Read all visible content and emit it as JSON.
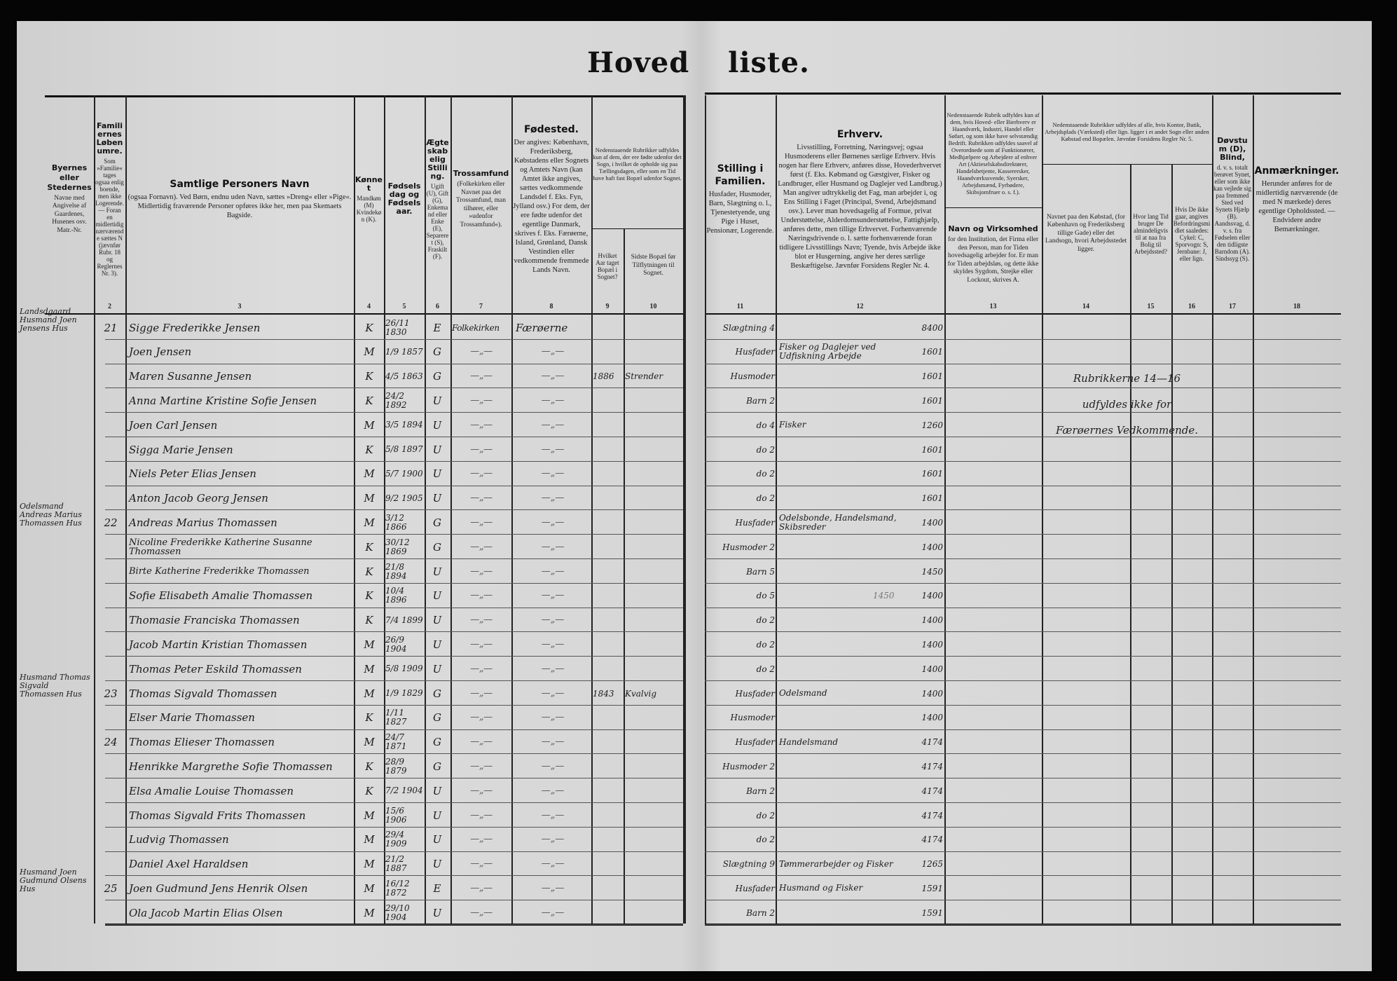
{
  "title": "Hoved liste.",
  "header": {
    "columns": [
      {
        "num": "",
        "title": "Byernes eller Stedernes",
        "text": "Navne med Angivelse af Gaardenes, Husenes osv. Matr.-Nr."
      },
      {
        "num": "2",
        "title": "Familiernes Løbenumre.",
        "text": "Som »Familie« tages ogsaa enlig boende, men ikke Logerende. — Foran en midlertidig nærværende sættes N (jævnfør Rubr. 18 og Reglernes Nr. 3)."
      },
      {
        "num": "3",
        "title": "Samtlige Personers Navn",
        "text": "(ogsaa Fornavn). Ved Børn, endnu uden Navn, sættes »Dreng« eller »Pige«. Midlertidig fraværende Personer opføres ikke her, men paa Skemaets Bagside."
      },
      {
        "num": "4",
        "title": "Kønnet",
        "text": "Mandkøn (M) Kvindekøn (K)."
      },
      {
        "num": "5",
        "title": "Fødselsdag og Fødselsaar.",
        "text": ""
      },
      {
        "num": "6",
        "title": "Ægteskabelig Stilling.",
        "text": "Ugift (U), Gift (G), Enkemand eller Enke (E), Separeret (S), Fraskilt (F)."
      },
      {
        "num": "7",
        "title": "Trossamfund",
        "text": "(Folkekirken eller Navnet paa det Trossamfund, man tilhører, eller »udenfor Trossamfund«)."
      },
      {
        "num": "8",
        "title": "Fødested.",
        "text": "Der angives: København, Frederiksberg, Købstadens eller Sognets og Amtets Navn (kan Amtet ikke angives, sættes vedkommende Landsdel f. Eks. Fyn, Jylland osv.) For dem, der ere fødte udenfor det egentlige Danmark, skrives f. Eks. Færøerne, Island, Grønland, Dansk Vestindien eller vedkommende fremmede Lands Navn."
      },
      {
        "num": "9",
        "title": "",
        "text": "Hvilket Aar taget Bopæl i Sognet?"
      },
      {
        "num": "10",
        "title": "",
        "text": "Sidste Bopæl før Tilflytningen til Sognet."
      },
      {
        "num": "11",
        "title": "Stilling i Familien.",
        "text": "Husfader, Husmoder, Barn, Slægtning o. l., Tjenestetyende, ung Pige i Huset, Pensionær, Logerende."
      },
      {
        "num": "12",
        "title": "Erhverv.",
        "text": "Livsstilling, Forretning, Næringsvej; ogsaa Husmoderens eller Børnenes særlige Erhverv. Hvis nogen har flere Erhverv, anføres disse, Hovederhvervet først (f. Eks. Købmand og Gæstgiver, Fisker og Landbruger, eller Husmand og Daglejer ved Landbrug.) Man angiver udtrykkelig det Fag, man arbejder i, og Ens Stilling i Faget (Principal, Svend, Arbejdsmand osv.). Lever man hovedsagelig af Formue, privat Understøttelse, Alderdomsunderstøttelse, Fattighjælp, anføres dette, men tillige Erhvervet. Forhenværende Næringsdrivende o. l. sætte forhenværende foran tidligere Livsstillings Navn; Tyende, hvis Arbejde ikke blot er Husgerning, angive her deres særlige Beskæftigelse. Jævnfør Forsidens Regler Nr. 4."
      },
      {
        "num": "13",
        "title": "Navn og Virksomhed",
        "text": "for den Institution, det Firma eller den Person, man for Tiden hovedsagelig arbejder for. Er man for Tiden arbejdsløs, og dette ikke skyldes Sygdom, Strejke eller Lockout, skrives A."
      },
      {
        "num": "14",
        "title": "",
        "text": "Navnet paa den Købstad, (for København og Frederiksberg tillige Gade) eller det Landsogn, hvori Arbejdsstedet ligger."
      },
      {
        "num": "15",
        "title": "",
        "text": "Hvor lang Tid bruger De almindeligvis til at naa fra Bolig til Arbejdssted?"
      },
      {
        "num": "16",
        "title": "",
        "text": "Hvis De ikke gaar, angives Befordringsmidlet saaledes: Cykel: C, Sporvogn: S, Jernbane: J, eller lign."
      },
      {
        "num": "17",
        "title": "Døvstum (D), Blind,",
        "text": "d. v. s. totalt berøvet Synet, eller som ikke kan vejlede sig paa fremmed Sted ved Synets Hjælp (B). Aandssvag, d. v. s. fra Fødselen eller den tidligste Barndom (A). Sindssyg (S)."
      },
      {
        "num": "18",
        "title": "Anmærkninger.",
        "text": "Herunder anføres for de midlertidig nærværende (de med N mærkede) deres egentlige Opholdssted. — Endvidere andre Bemærkninger."
      }
    ],
    "group_9_10": "Nedenstaaende Rubrikker udfyldes kun af dem, der ere fødte udenfor det Sogn, i hvilket de opholde sig paa Tællingsdagen, eller som en Tid have haft fast Bopæl udenfor Sognet.",
    "group_13": "Nedenstaaende Rubrik udfyldes kun af dem, hvis Hoved- eller Bierhverv er Haandværk, Industri, Handel eller Søfart, og som ikke have selvstændig Bedrift. Rubrikken udfyldes saavel af Overordnede som af Funktionærer, Medhjælpere og Arbejdere af enhver Art (Aktieselskabsdirektører, Handelsbetjente, Kasserersker, Haandværkssvende, Syersker, Arbejdsmænd, Fyrbødere, Skibsjomfruer o. s. f.).",
    "group_14_16": "Nedenstaaende Rubrikker udfyldes af alle, hvis Kontor, Butik, Arbejdsplads (Værksted) eller lign. ligger i et andet Sogn eller anden Købstad end Bopælen. Jævnfør Forsidens Regler Nr. 5."
  },
  "note_14_16": [
    "Rubrikkerne 14—16",
    "udfyldes ikke for",
    "Færøernes Vedkommende."
  ],
  "rows": [
    {
      "place": "Landsdgaard Husmand Joen Jensens Hus",
      "fam": "21",
      "name": "Sigge Frederikke Jensen",
      "sex": "K",
      "born": "26/11 1830",
      "civil": "E",
      "faith": "Folkekirken",
      "birthplace": "Færøerne",
      "year": "",
      "last": "",
      "stilling": "Slægtning 4",
      "erhverv": "",
      "code": "8400"
    },
    {
      "place": "",
      "fam": "",
      "name": "Joen Jensen",
      "sex": "M",
      "born": "1/9 1857",
      "civil": "G",
      "faith": "—„—",
      "birthplace": "—„—",
      "year": "",
      "last": "",
      "stilling": "Husfader",
      "erhverv": "Fisker og Daglejer ved Udfiskning Arbejde",
      "code": "1601"
    },
    {
      "place": "",
      "fam": "",
      "name": "Maren Susanne Jensen",
      "sex": "K",
      "born": "4/5 1863",
      "civil": "G",
      "faith": "—„—",
      "birthplace": "—„—",
      "year": "1886",
      "last": "Strender",
      "stilling": "Husmoder",
      "erhverv": "",
      "code": "1601"
    },
    {
      "place": "",
      "fam": "",
      "name": "Anna Martine Kristine Sofie Jensen",
      "sex": "K",
      "born": "24/2 1892",
      "civil": "U",
      "faith": "—„—",
      "birthplace": "—„—",
      "year": "",
      "last": "",
      "stilling": "Barn 2",
      "erhverv": "",
      "code": "1601"
    },
    {
      "place": "",
      "fam": "",
      "name": "Joen Carl Jensen",
      "sex": "M",
      "born": "3/5 1894",
      "civil": "U",
      "faith": "—„—",
      "birthplace": "—„—",
      "year": "",
      "last": "",
      "stilling": "do 4",
      "erhverv": "Fisker",
      "code": "1260"
    },
    {
      "place": "",
      "fam": "",
      "name": "Sigga Marie Jensen",
      "sex": "K",
      "born": "5/8 1897",
      "civil": "U",
      "faith": "—„—",
      "birthplace": "—„—",
      "year": "",
      "last": "",
      "stilling": "do 2",
      "erhverv": "",
      "code": "1601"
    },
    {
      "place": "",
      "fam": "",
      "name": "Niels Peter Elias Jensen",
      "sex": "M",
      "born": "5/7 1900",
      "civil": "U",
      "faith": "—„—",
      "birthplace": "—„—",
      "year": "",
      "last": "",
      "stilling": "do 2",
      "erhverv": "",
      "code": "1601"
    },
    {
      "place": "",
      "fam": "",
      "name": "Anton Jacob Georg Jensen",
      "sex": "M",
      "born": "9/2 1905",
      "civil": "U",
      "faith": "—„—",
      "birthplace": "—„—",
      "year": "",
      "last": "",
      "stilling": "do 2",
      "erhverv": "",
      "code": "1601"
    },
    {
      "place": "Odelsmand Andreas Marius Thomassen Hus",
      "fam": "22",
      "name": "Andreas Marius Thomassen",
      "sex": "M",
      "born": "3/12 1866",
      "civil": "G",
      "faith": "—„—",
      "birthplace": "—„—",
      "year": "",
      "last": "",
      "stilling": "Husfader",
      "erhverv": "Odelsbonde, Handelsmand, Skibsreder",
      "code": "1400"
    },
    {
      "place": "",
      "fam": "",
      "name": "Nicoline Frederikke Katherine Susanne Thomassen",
      "sex": "K",
      "born": "30/12 1869",
      "civil": "G",
      "faith": "—„—",
      "birthplace": "—„—",
      "year": "",
      "last": "",
      "stilling": "Husmoder 2",
      "erhverv": "",
      "code": "1400"
    },
    {
      "place": "",
      "fam": "",
      "name": "Birte Katherine Frederikke Thomassen",
      "sex": "K",
      "born": "21/8 1894",
      "civil": "U",
      "faith": "—„—",
      "birthplace": "—„—",
      "year": "",
      "last": "",
      "stilling": "Barn 5",
      "erhverv": "",
      "code": "1450"
    },
    {
      "place": "",
      "fam": "",
      "name": "Sofie Elisabeth Amalie Thomassen",
      "sex": "K",
      "born": "10/4 1896",
      "civil": "U",
      "faith": "—„—",
      "birthplace": "—„—",
      "year": "",
      "last": "",
      "stilling": "do 5",
      "erhverv": "",
      "code": "1400",
      "pencil": "1450"
    },
    {
      "place": "",
      "fam": "",
      "name": "Thomasie Franciska Thomassen",
      "sex": "K",
      "born": "7/4 1899",
      "civil": "U",
      "faith": "—„—",
      "birthplace": "—„—",
      "year": "",
      "last": "",
      "stilling": "do 2",
      "erhverv": "",
      "code": "1400"
    },
    {
      "place": "",
      "fam": "",
      "name": "Jacob Martin Kristian Thomassen",
      "sex": "M",
      "born": "26/9 1904",
      "civil": "U",
      "faith": "—„—",
      "birthplace": "—„—",
      "year": "",
      "last": "",
      "stilling": "do 2",
      "erhverv": "",
      "code": "1400"
    },
    {
      "place": "",
      "fam": "",
      "name": "Thomas Peter Eskild Thomassen",
      "sex": "M",
      "born": "5/8 1909",
      "civil": "U",
      "faith": "—„—",
      "birthplace": "—„—",
      "year": "",
      "last": "",
      "stilling": "do 2",
      "erhverv": "",
      "code": "1400"
    },
    {
      "place": "Husmand Thomas Sigvald Thomassen Hus",
      "fam": "23",
      "name": "Thomas Sigvald Thomassen",
      "sex": "M",
      "born": "1/9 1829",
      "civil": "G",
      "faith": "—„—",
      "birthplace": "—„—",
      "year": "1843",
      "last": "Kvalvig",
      "stilling": "Husfader",
      "erhverv": "Odelsmand",
      "code": "1400"
    },
    {
      "place": "",
      "fam": "",
      "name": "Elser Marie Thomassen",
      "sex": "K",
      "born": "1/11 1827",
      "civil": "G",
      "faith": "—„—",
      "birthplace": "—„—",
      "year": "",
      "last": "",
      "stilling": "Husmoder",
      "erhverv": "",
      "code": "1400"
    },
    {
      "place": "",
      "fam": "24",
      "name": "Thomas Elieser Thomassen",
      "sex": "M",
      "born": "24/7 1871",
      "civil": "G",
      "faith": "—„—",
      "birthplace": "—„—",
      "year": "",
      "last": "",
      "stilling": "Husfader",
      "erhverv": "Handelsmand",
      "code": "4174"
    },
    {
      "place": "",
      "fam": "",
      "name": "Henrikke Margrethe Sofie Thomassen",
      "sex": "K",
      "born": "28/9 1879",
      "civil": "G",
      "faith": "—„—",
      "birthplace": "—„—",
      "year": "",
      "last": "",
      "stilling": "Husmoder 2",
      "erhverv": "",
      "code": "4174"
    },
    {
      "place": "",
      "fam": "",
      "name": "Elsa Amalie Louise Thomassen",
      "sex": "K",
      "born": "7/2 1904",
      "civil": "U",
      "faith": "—„—",
      "birthplace": "—„—",
      "year": "",
      "last": "",
      "stilling": "Barn 2",
      "erhverv": "",
      "code": "4174"
    },
    {
      "place": "",
      "fam": "",
      "name": "Thomas Sigvald Frits Thomassen",
      "sex": "M",
      "born": "15/6 1906",
      "civil": "U",
      "faith": "—„—",
      "birthplace": "—„—",
      "year": "",
      "last": "",
      "stilling": "do 2",
      "erhverv": "",
      "code": "4174"
    },
    {
      "place": "",
      "fam": "",
      "name": "Ludvig Thomassen",
      "sex": "M",
      "born": "29/4 1909",
      "civil": "U",
      "faith": "—„—",
      "birthplace": "—„—",
      "year": "",
      "last": "",
      "stilling": "do 2",
      "erhverv": "",
      "code": "4174"
    },
    {
      "place": "",
      "fam": "",
      "name": "Daniel Axel Haraldsen",
      "sex": "M",
      "born": "21/2 1887",
      "civil": "U",
      "faith": "—„—",
      "birthplace": "—„—",
      "year": "",
      "last": "",
      "stilling": "Slægtning 9",
      "erhverv": "Tømmerarbejder og Fisker",
      "code": "1265"
    },
    {
      "place": "Husmand Joen Gudmund Olsens Hus",
      "fam": "25",
      "name": "Joen Gudmund Jens Henrik Olsen",
      "sex": "M",
      "born": "16/12 1872",
      "civil": "E",
      "faith": "—„—",
      "birthplace": "—„—",
      "year": "",
      "last": "",
      "stilling": "Husfader",
      "erhverv": "Husmand og Fisker",
      "code": "1591"
    },
    {
      "place": "",
      "fam": "",
      "name": "Ola Jacob Martin Elias Olsen",
      "sex": "M",
      "born": "29/10 1904",
      "civil": "U",
      "faith": "—„—",
      "birthplace": "—„—",
      "year": "",
      "last": "",
      "stilling": "Barn 2",
      "erhverv": "",
      "code": "1591"
    }
  ]
}
